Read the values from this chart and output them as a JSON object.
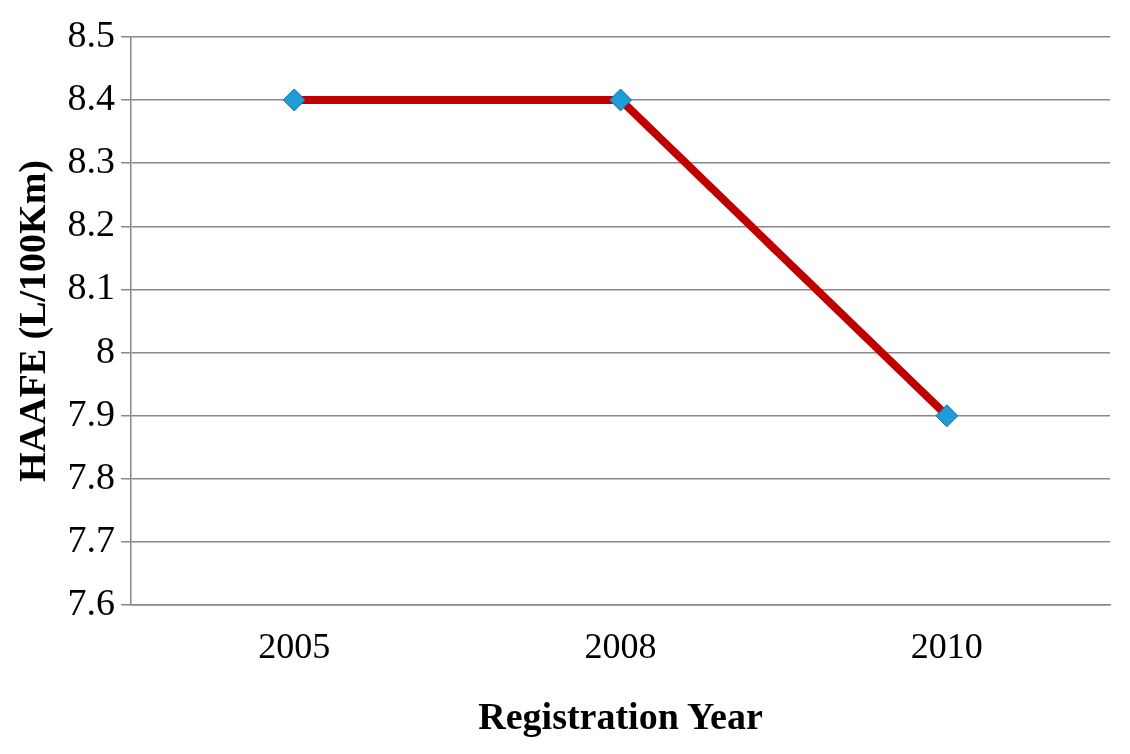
{
  "chart_data": {
    "type": "line",
    "xlabel": "Registration Year",
    "ylabel": "HAAFE (L/100Km)",
    "categories": [
      "2005",
      "2008",
      "2010"
    ],
    "series": [
      {
        "color": "#c00000",
        "values": [
          8.4,
          8.4,
          7.9
        ]
      }
    ],
    "ylim": [
      7.6,
      8.5
    ],
    "yticks": [
      7.6,
      7.7,
      7.8,
      7.9,
      8,
      8.1,
      8.2,
      8.3,
      8.4,
      8.5
    ],
    "grid": "y",
    "legend": false,
    "marker": "diamond",
    "line_style": "solid"
  }
}
